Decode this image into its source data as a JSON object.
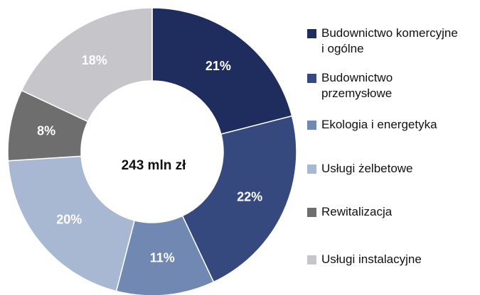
{
  "chart_data": {
    "type": "donut",
    "center_label": "243 mln zł",
    "categories": [
      "Budownictwo komercyjne i ogólne",
      "Budownictwo przemysłowe",
      "Ekologia i energetyka",
      "Usługi żelbetowe",
      "Rewitalizacja",
      "Usługi instalacyjne"
    ],
    "values": [
      21,
      22,
      11,
      20,
      8,
      18
    ],
    "value_labels": [
      "21%",
      "22%",
      "11%",
      "20%",
      "8%",
      "18%"
    ],
    "colors": [
      "#1f2d5e",
      "#36497f",
      "#7088b2",
      "#a8b7d2",
      "#6e6e6e",
      "#c6c6ca"
    ],
    "legend": "right"
  }
}
